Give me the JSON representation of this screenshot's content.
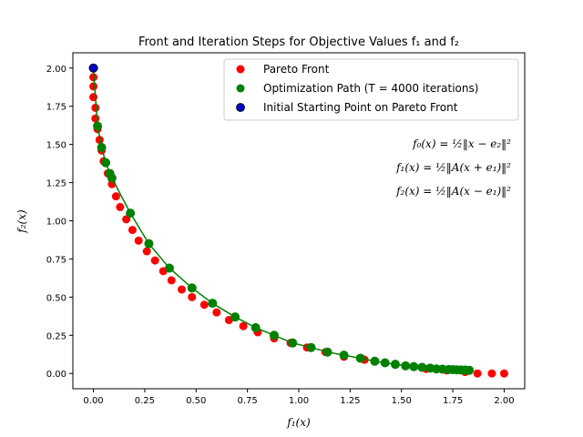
{
  "chart_data": {
    "type": "scatter",
    "title": "Front and Iteration Steps for Objective Values f₁ and f₂",
    "xlabel": "f₁(x)",
    "ylabel": "f₂(x)",
    "xlim": [
      -0.1,
      2.1
    ],
    "ylim": [
      -0.1,
      2.1
    ],
    "xticks": [
      "0.00",
      "0.25",
      "0.50",
      "0.75",
      "1.00",
      "1.25",
      "1.50",
      "1.75",
      "2.00"
    ],
    "yticks": [
      "0.00",
      "0.25",
      "0.50",
      "0.75",
      "1.00",
      "1.25",
      "1.50",
      "1.75",
      "2.00"
    ],
    "grid": false,
    "legend_position": "top-right",
    "series": [
      {
        "name": "Pareto Front",
        "color": "#ff0000",
        "marker": "circle",
        "x": [
          0.0,
          0.0,
          0.0,
          0.0,
          0.01,
          0.01,
          0.02,
          0.03,
          0.04,
          0.05,
          0.07,
          0.09,
          0.11,
          0.13,
          0.16,
          0.19,
          0.22,
          0.26,
          0.3,
          0.34,
          0.38,
          0.43,
          0.48,
          0.54,
          0.6,
          0.66,
          0.73,
          0.8,
          0.88,
          0.96,
          1.04,
          1.13,
          1.22,
          1.32,
          1.42,
          1.52,
          1.62,
          1.72,
          1.81,
          1.87,
          1.94,
          2.0
        ],
        "y": [
          2.0,
          1.94,
          1.88,
          1.81,
          1.74,
          1.67,
          1.6,
          1.53,
          1.46,
          1.39,
          1.31,
          1.24,
          1.16,
          1.09,
          1.01,
          0.94,
          0.87,
          0.8,
          0.74,
          0.67,
          0.61,
          0.55,
          0.5,
          0.45,
          0.4,
          0.35,
          0.31,
          0.27,
          0.23,
          0.2,
          0.17,
          0.14,
          0.11,
          0.09,
          0.07,
          0.05,
          0.03,
          0.02,
          0.01,
          0.0,
          0.0,
          0.0
        ]
      },
      {
        "name": "Optimization Path (T = 4000 iterations)",
        "color": "#008000",
        "marker": "circle-line",
        "x": [
          0.0,
          0.02,
          0.04,
          0.06,
          0.08,
          0.09,
          0.18,
          0.27,
          0.37,
          0.48,
          0.58,
          0.69,
          0.79,
          0.88,
          0.97,
          1.06,
          1.14,
          1.22,
          1.3,
          1.37,
          1.42,
          1.47,
          1.52,
          1.56,
          1.6,
          1.64,
          1.67,
          1.7,
          1.73,
          1.75,
          1.77,
          1.79,
          1.81,
          1.83
        ],
        "y": [
          2.0,
          1.62,
          1.48,
          1.38,
          1.31,
          1.28,
          1.05,
          0.85,
          0.69,
          0.56,
          0.46,
          0.37,
          0.3,
          0.25,
          0.2,
          0.17,
          0.14,
          0.12,
          0.1,
          0.08,
          0.07,
          0.06,
          0.05,
          0.045,
          0.04,
          0.035,
          0.03,
          0.028,
          0.026,
          0.025,
          0.024,
          0.023,
          0.022,
          0.021
        ]
      },
      {
        "name": "Initial Starting Point on Pareto Front",
        "color": "#0000cc",
        "marker": "circle-outlined",
        "x": [
          0.0
        ],
        "y": [
          2.0
        ]
      }
    ],
    "annotations": [
      "f₀(x) = ½‖x − e₂‖²",
      "f₁(x) = ½‖A(x + e₁)‖²",
      "f₂(x) = ½‖A(x − e₁)‖²"
    ]
  }
}
